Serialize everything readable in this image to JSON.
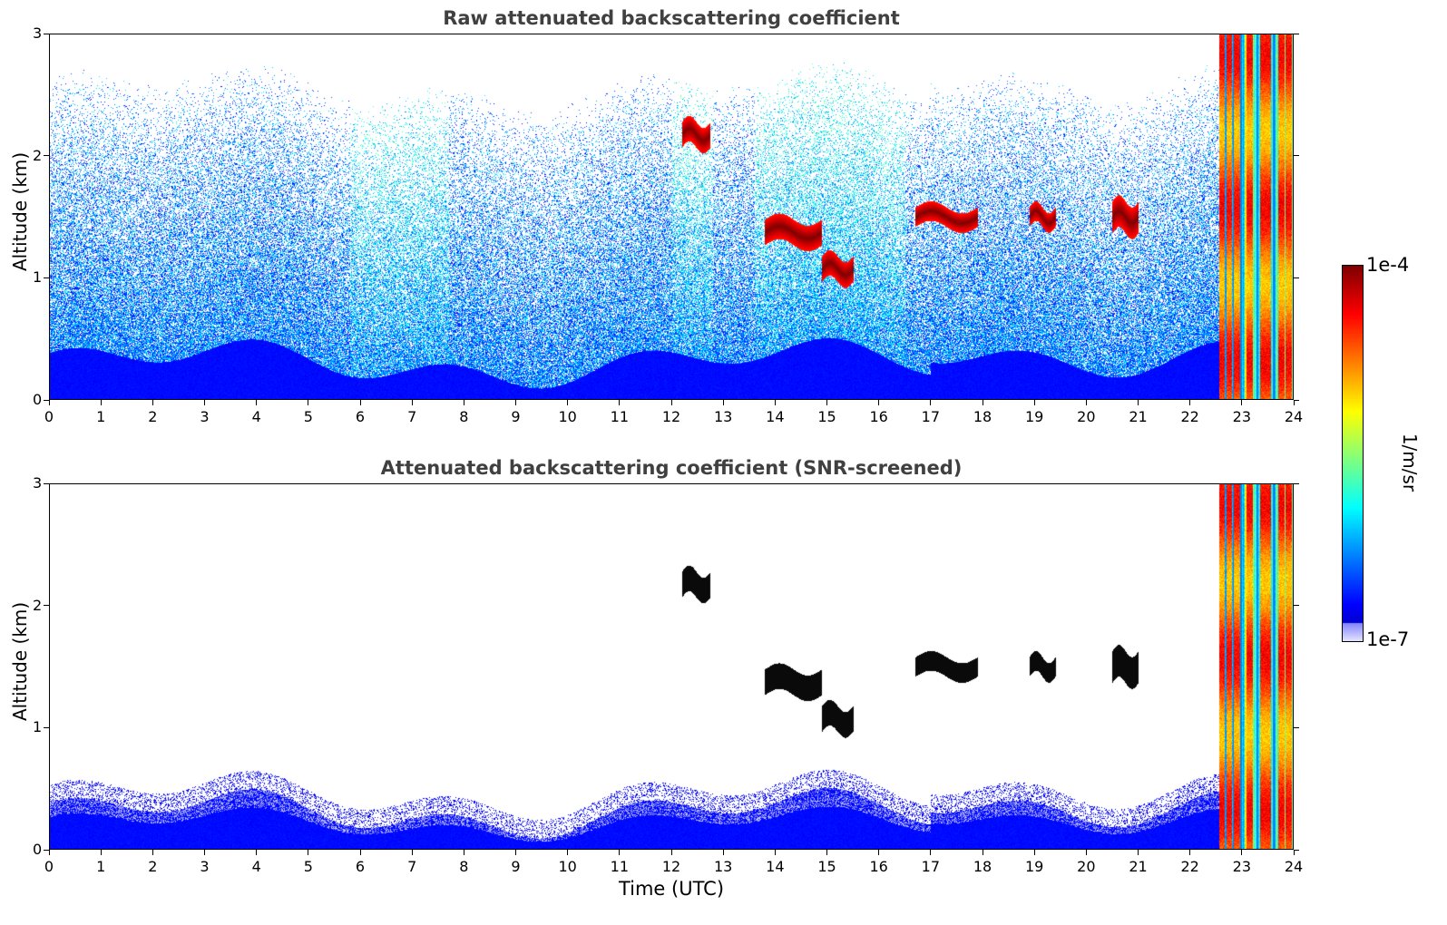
{
  "chart_data": [
    {
      "type": "heatmap",
      "title": "Raw attenuated backscattering coefficient",
      "xlabel": "",
      "ylabel": "Altitude (km)",
      "xlim": [
        0,
        24
      ],
      "ylim": [
        0,
        3
      ],
      "xticks": [
        "0",
        "1",
        "2",
        "3",
        "4",
        "5",
        "6",
        "7",
        "8",
        "9",
        "10",
        "11",
        "12",
        "13",
        "14",
        "15",
        "16",
        "17",
        "18",
        "19",
        "20",
        "21",
        "22",
        "23",
        "24"
      ],
      "yticks": [
        "0",
        "1",
        "2",
        "3"
      ],
      "screened": false,
      "layers": [
        {
          "name": "boundary layer",
          "x": [
            0,
            22.55
          ],
          "top_km": [
            0.25,
            0.5
          ]
        },
        {
          "name": "cloud",
          "x": [
            12.2,
            12.75
          ],
          "alt_km": [
            2.1,
            2.25
          ]
        },
        {
          "name": "cloud",
          "x": [
            13.8,
            14.9
          ],
          "alt_km": [
            1.3,
            1.45
          ]
        },
        {
          "name": "cloud",
          "x": [
            14.9,
            15.5
          ],
          "alt_km": [
            1.0,
            1.15
          ]
        },
        {
          "name": "cloud",
          "x": [
            16.7,
            17.9
          ],
          "alt_km": [
            1.45,
            1.55
          ]
        },
        {
          "name": "cloud",
          "x": [
            18.9,
            19.4
          ],
          "alt_km": [
            1.45,
            1.55
          ]
        },
        {
          "name": "cloud",
          "x": [
            20.5,
            21.0
          ],
          "alt_km": [
            1.4,
            1.6
          ]
        },
        {
          "name": "rain/cloud",
          "x": [
            22.55,
            24
          ],
          "alt_km": [
            0,
            3
          ]
        }
      ]
    },
    {
      "type": "heatmap",
      "title": "Attenuated backscattering coefficient (SNR-screened)",
      "xlabel": "Time (UTC)",
      "ylabel": "Altitude (km)",
      "xlim": [
        0,
        24
      ],
      "ylim": [
        0,
        3
      ],
      "xticks": [
        "0",
        "1",
        "2",
        "3",
        "4",
        "5",
        "6",
        "7",
        "8",
        "9",
        "10",
        "11",
        "12",
        "13",
        "14",
        "15",
        "16",
        "17",
        "18",
        "19",
        "20",
        "21",
        "22",
        "23",
        "24"
      ],
      "yticks": [
        "0",
        "1",
        "2",
        "3"
      ],
      "screened": true
    }
  ],
  "colorbar": {
    "max_label": "1e-4",
    "min_label": "1e-7",
    "unit": "1/m/sr",
    "colormap": "jet"
  }
}
